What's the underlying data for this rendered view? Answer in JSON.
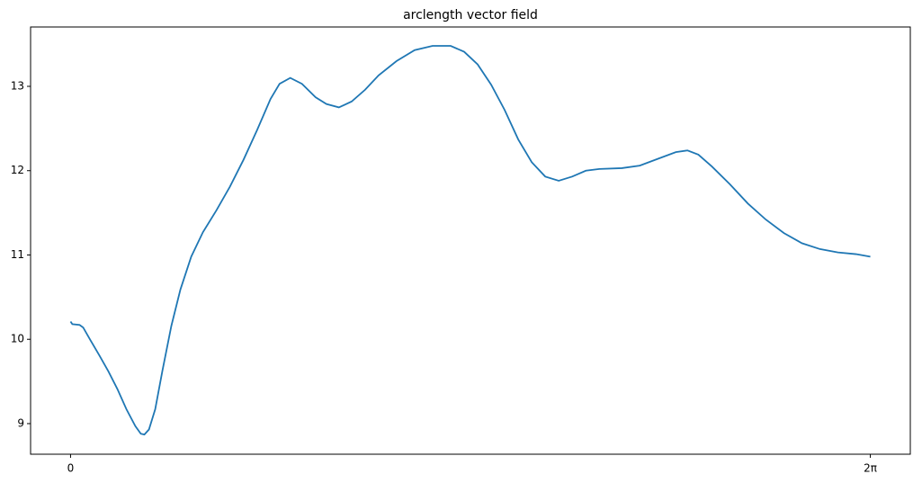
{
  "chart_data": {
    "type": "line",
    "title": "arclength vector field",
    "x": [
      0,
      0.014,
      0.071,
      0.099,
      0.156,
      0.226,
      0.297,
      0.368,
      0.439,
      0.509,
      0.552,
      0.58,
      0.616,
      0.665,
      0.722,
      0.792,
      0.863,
      0.948,
      1.04,
      1.146,
      1.252,
      1.359,
      1.465,
      1.571,
      1.642,
      1.726,
      1.818,
      1.925,
      2.01,
      2.108,
      2.208,
      2.314,
      2.42,
      2.561,
      2.703,
      2.844,
      2.986,
      3.092,
      3.198,
      3.304,
      3.41,
      3.517,
      3.623,
      3.729,
      3.835,
      3.941,
      4.048,
      4.154,
      4.331,
      4.472,
      4.613,
      4.755,
      4.847,
      4.932,
      5.038,
      5.179,
      5.321,
      5.462,
      5.604,
      5.745,
      5.887,
      6.028,
      6.17,
      6.283
    ],
    "series": [
      {
        "color": "#1f77b4",
        "values": [
          10.21,
          10.18,
          10.17,
          10.14,
          9.99,
          9.81,
          9.62,
          9.41,
          9.17,
          8.97,
          8.88,
          8.87,
          8.93,
          9.17,
          9.63,
          10.16,
          10.59,
          10.98,
          11.27,
          11.53,
          11.81,
          12.13,
          12.48,
          12.85,
          13.03,
          13.1,
          13.03,
          12.87,
          12.79,
          12.75,
          12.82,
          12.96,
          13.13,
          13.3,
          13.43,
          13.48,
          13.48,
          13.41,
          13.26,
          13.02,
          12.72,
          12.37,
          12.1,
          11.93,
          11.88,
          11.93,
          12.0,
          12.02,
          12.03,
          12.06,
          12.14,
          12.22,
          12.24,
          12.19,
          12.05,
          11.84,
          11.61,
          11.42,
          11.26,
          11.14,
          11.07,
          11.03,
          11.01,
          10.98
        ]
      }
    ],
    "xlim": [
      -0.314,
      6.597
    ],
    "xticks": [
      0,
      {
        "value": 6.283,
        "label": "2π"
      }
    ],
    "ylim": [
      8.637,
      13.704
    ],
    "yticks": [
      9,
      10,
      11,
      12,
      13
    ]
  }
}
